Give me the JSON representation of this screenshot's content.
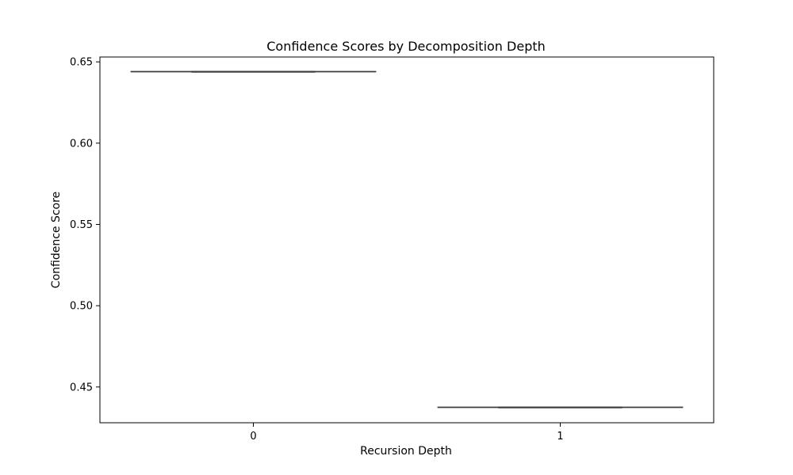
{
  "chart_data": {
    "type": "box",
    "title": "Confidence Scores by Decomposition Depth",
    "xlabel": "Recursion Depth",
    "ylabel": "Confidence Score",
    "categories": [
      "0",
      "1"
    ],
    "ylim": [
      0.428,
      0.653
    ],
    "yticks": [
      0.45,
      0.5,
      0.55,
      0.6,
      0.65
    ],
    "ytick_labels": [
      "0.45",
      "0.50",
      "0.55",
      "0.60",
      "0.65"
    ],
    "boxes": [
      {
        "category": "0",
        "min": 0.644,
        "q1": 0.644,
        "median": 0.644,
        "q3": 0.644,
        "max": 0.644
      },
      {
        "category": "1",
        "min": 0.4375,
        "q1": 0.4375,
        "median": 0.4375,
        "q3": 0.4375,
        "max": 0.4375
      }
    ],
    "colors": {
      "box_line": "#3d3d3d",
      "axis": "#000000"
    },
    "grid": false,
    "legend": "none"
  }
}
